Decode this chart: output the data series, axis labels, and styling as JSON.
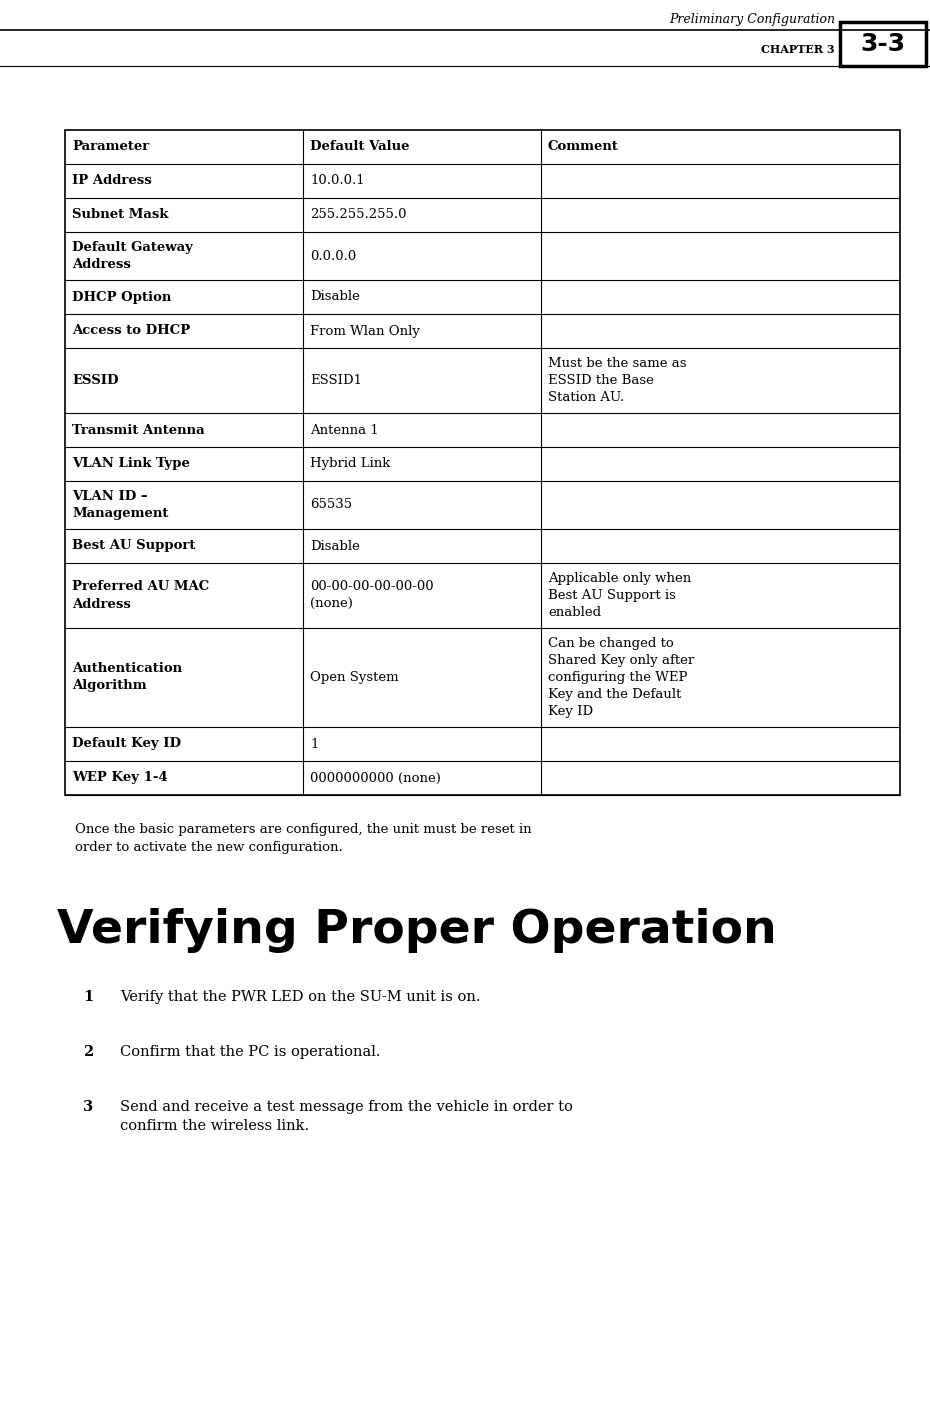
{
  "header_italic": "Preliminary Configuration",
  "header_chapter": "CHAPTER 3",
  "header_page": "3-3",
  "table_rows": [
    {
      "param": "Parameter",
      "value": "Default Value",
      "comment": "Comment",
      "is_header": true
    },
    {
      "param": "IP Address",
      "value": "10.0.0.1",
      "comment": ""
    },
    {
      "param": "Subnet Mask",
      "value": "255.255.255.0",
      "comment": ""
    },
    {
      "param": "Default Gateway\nAddress",
      "value": "0.0.0.0",
      "comment": ""
    },
    {
      "param": "DHCP Option",
      "value": "Disable",
      "comment": ""
    },
    {
      "param": "Access to DHCP",
      "value": "From Wlan Only",
      "comment": ""
    },
    {
      "param": "ESSID",
      "value": "ESSID1",
      "comment": "Must be the same as\nESSID the Base\nStation AU."
    },
    {
      "param": "Transmit Antenna",
      "value": "Antenna 1",
      "comment": ""
    },
    {
      "param": "VLAN Link Type",
      "value": "Hybrid Link",
      "comment": ""
    },
    {
      "param": "VLAN ID –\nManagement",
      "value": "65535",
      "comment": ""
    },
    {
      "param": "Best AU Support",
      "value": "Disable",
      "comment": ""
    },
    {
      "param": "Preferred AU MAC\nAddress",
      "value": "00-00-00-00-00-00\n(none)",
      "comment": "Applicable only when\nBest AU Support is\nenabled"
    },
    {
      "param": "Authentication\nAlgorithm",
      "value": "Open System",
      "comment": "Can be changed to\nShared Key only after\nconfiguring the WEP\nKey and the Default\nKey ID"
    },
    {
      "param": "Default Key ID",
      "value": "1",
      "comment": ""
    },
    {
      "param": "WEP Key 1-4",
      "value": "0000000000 (none)",
      "comment": ""
    }
  ],
  "note_text": "Once the basic parameters are configured, the unit must be reset in\norder to activate the new configuration.",
  "section_title": "Verifying Proper Operation",
  "list_items": [
    "Verify that the PWR LED on the SU-M unit is on.",
    "Confirm that the PC is operational.",
    "Send and receive a test message from the vehicle in order to\nconfirm the wireless link."
  ],
  "bg_color": "#ffffff"
}
